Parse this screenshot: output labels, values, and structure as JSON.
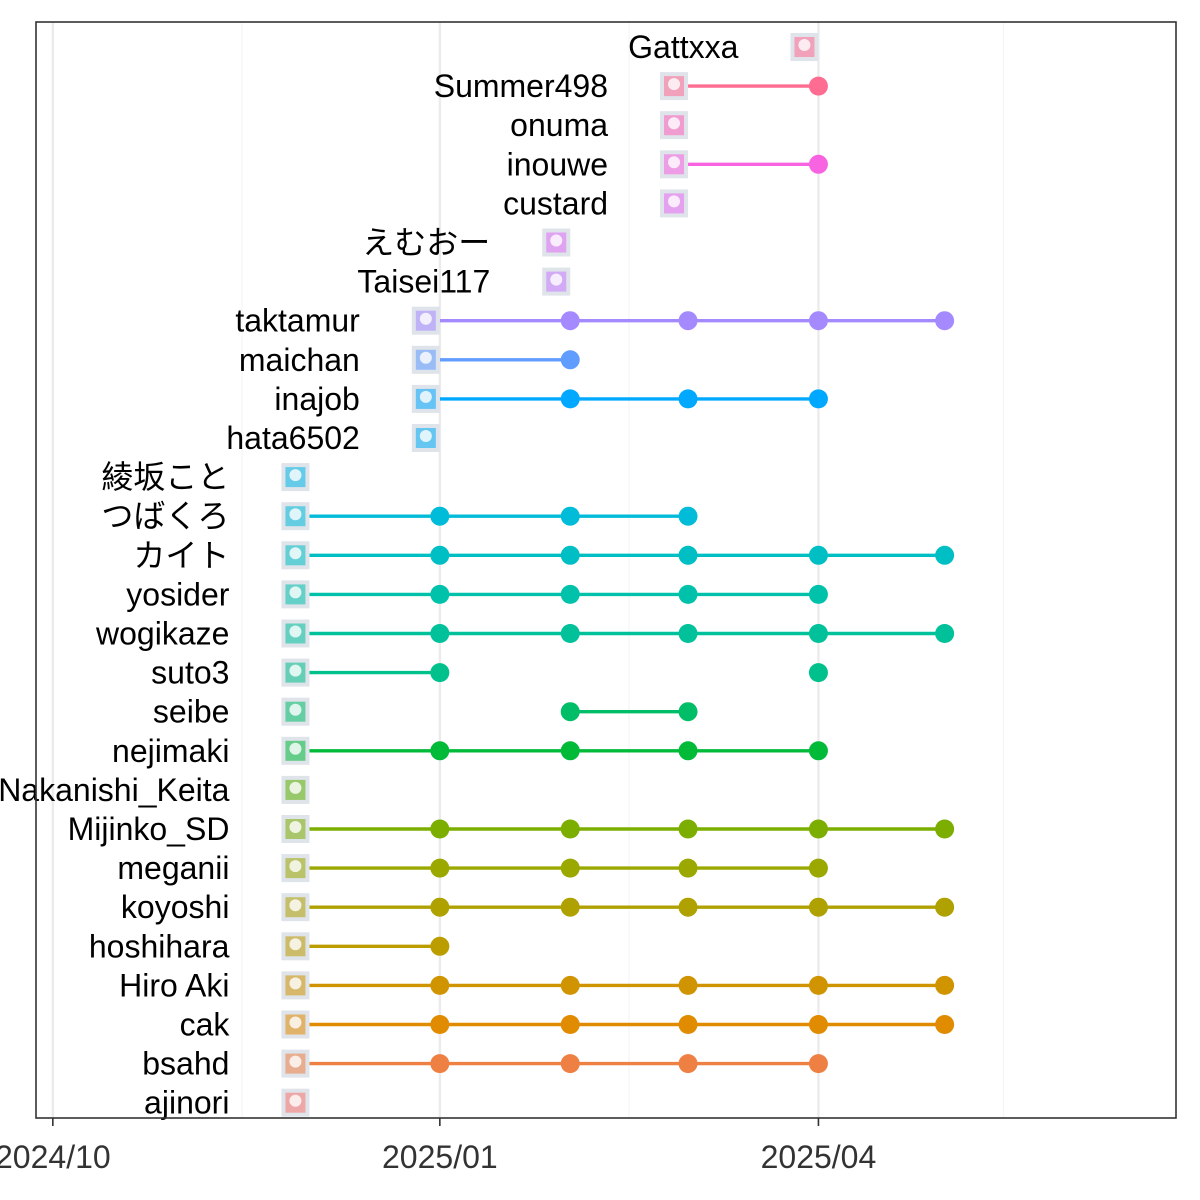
{
  "chart_data": {
    "type": "scatter",
    "title": "",
    "xlabel": "",
    "ylabel": "",
    "x_axis": {
      "type": "date",
      "range": [
        "2024-09-27",
        "2025-06-25"
      ],
      "ticks": [
        {
          "date": "2024-10-01",
          "label": "2024/10"
        },
        {
          "date": "2025-01-01",
          "label": "2025/01"
        },
        {
          "date": "2025-04-01",
          "label": "2025/04"
        }
      ],
      "minor_gridlines": [
        "2024-11-15",
        "2025-02-15",
        "2025-05-15"
      ]
    },
    "grid": true,
    "legend": "none",
    "series": [
      {
        "name": "ajinori",
        "color": "#F8766D",
        "icon": "avatar-cat-dark",
        "start": "2024-12-01",
        "dates": []
      },
      {
        "name": "bsahd",
        "color": "#EE8044",
        "icon": "avatar-white-symbol",
        "start": "2024-12-01",
        "dates": [
          "2025-01-01",
          "2025-02-01",
          "2025-03-01",
          "2025-04-01"
        ]
      },
      {
        "name": "cak",
        "color": "#E08B00",
        "icon": "avatar-blue-envelope",
        "start": "2024-12-01",
        "dates": [
          "2025-01-01",
          "2025-02-01",
          "2025-03-01",
          "2025-04-01",
          "2025-05-01"
        ]
      },
      {
        "name": "Hiro Aki",
        "color": "#CF9400",
        "icon": "avatar-green-box",
        "start": "2024-12-01",
        "dates": [
          "2025-01-01",
          "2025-02-01",
          "2025-03-01",
          "2025-04-01",
          "2025-05-01"
        ]
      },
      {
        "name": "hoshihara",
        "color": "#BC9D00",
        "icon": "avatar-grey-sketch",
        "start": "2024-12-01",
        "dates": [
          "2025-01-01"
        ]
      },
      {
        "name": "koyoshi",
        "color": "#AFA100",
        "icon": "avatar-red-stamp",
        "start": "2024-12-01",
        "dates": [
          "2025-01-01",
          "2025-02-01",
          "2025-03-01",
          "2025-04-01",
          "2025-05-01"
        ]
      },
      {
        "name": "meganii",
        "color": "#9AA800",
        "icon": "avatar-glasses-face",
        "start": "2024-12-01",
        "dates": [
          "2025-01-01",
          "2025-02-01",
          "2025-03-01",
          "2025-04-01"
        ]
      },
      {
        "name": "Mijinko_SD",
        "color": "#7CAE00",
        "icon": "avatar-lavender-character",
        "start": "2024-12-01",
        "dates": [
          "2025-01-01",
          "2025-02-01",
          "2025-03-01",
          "2025-04-01",
          "2025-05-01"
        ]
      },
      {
        "name": "Nakanishi_Keita",
        "color": "#5BB300",
        "icon": "avatar-grey-figure",
        "start": "2024-12-01",
        "dates": []
      },
      {
        "name": "nejimaki",
        "color": "#00BA38",
        "icon": "avatar-windup-key",
        "start": "2024-12-01",
        "dates": [
          "2025-01-01",
          "2025-02-01",
          "2025-03-01",
          "2025-04-01"
        ]
      },
      {
        "name": "seibe",
        "color": "#00BE67",
        "icon": "avatar-teal-character",
        "start": "2024-12-01",
        "dates": [
          "2025-02-01",
          "2025-03-01"
        ]
      },
      {
        "name": "suto3",
        "color": "#00C08B",
        "icon": "avatar-black-circle",
        "start": "2024-12-01",
        "dates": [
          "2025-01-01",
          "2025-04-01"
        ]
      },
      {
        "name": "wogikaze",
        "color": "#00C19A",
        "icon": "avatar-orange-drawing",
        "start": "2024-12-01",
        "dates": [
          "2025-01-01",
          "2025-02-01",
          "2025-03-01",
          "2025-04-01",
          "2025-05-01"
        ]
      },
      {
        "name": "yosider",
        "color": "#00C1AA",
        "icon": "avatar-blue-hair-character",
        "start": "2024-12-01",
        "dates": [
          "2025-01-01",
          "2025-02-01",
          "2025-03-01",
          "2025-04-01"
        ]
      },
      {
        "name": "カイト",
        "color": "#00BFC4",
        "icon": "avatar-dark-photo",
        "start": "2024-12-01",
        "dates": [
          "2025-01-01",
          "2025-02-01",
          "2025-03-01",
          "2025-04-01",
          "2025-05-01"
        ]
      },
      {
        "name": "つばくろ",
        "color": "#00BCD8",
        "icon": "avatar-bird-photo",
        "start": "2024-12-01",
        "dates": [
          "2025-01-01",
          "2025-02-01",
          "2025-03-01"
        ]
      },
      {
        "name": "綾坂こと",
        "color": "#00B8E7",
        "icon": "avatar-light-card",
        "start": "2024-12-01",
        "dates": []
      },
      {
        "name": "hata6502",
        "color": "#00B0F6",
        "icon": "avatar-white-figure",
        "start": "2025-01-01",
        "dates": []
      },
      {
        "name": "inajob",
        "color": "#00A9FF",
        "icon": "avatar-red-robot",
        "start": "2025-01-01",
        "dates": [
          "2025-02-01",
          "2025-03-01",
          "2025-04-01"
        ]
      },
      {
        "name": "maichan",
        "color": "#619CFF",
        "icon": "avatar-pink-blocks",
        "start": "2025-01-01",
        "dates": [
          "2025-02-01"
        ]
      },
      {
        "name": "taktamur",
        "color": "#A58AFF",
        "icon": "avatar-yellow-chick",
        "start": "2025-01-01",
        "dates": [
          "2025-02-01",
          "2025-03-01",
          "2025-04-01",
          "2025-05-01"
        ]
      },
      {
        "name": "Taisei117",
        "color": "#C77CFF",
        "icon": "avatar-suit-person",
        "start": "2025-02-01",
        "dates": []
      },
      {
        "name": "えむおー",
        "color": "#DF70F8",
        "icon": "avatar-cartoon-face",
        "start": "2025-02-01",
        "dates": []
      },
      {
        "name": "custard",
        "color": "#E76BF3",
        "icon": "avatar-grey-photo",
        "start": "2025-03-01",
        "dates": []
      },
      {
        "name": "inouwe",
        "color": "#F763E0",
        "icon": "avatar-anime-girl",
        "start": "2025-03-01",
        "dates": [
          "2025-04-01"
        ]
      },
      {
        "name": "onuma",
        "color": "#FF62BC",
        "icon": "avatar-red-food",
        "start": "2025-03-01",
        "dates": []
      },
      {
        "name": "Summer498",
        "color": "#FF6C91",
        "icon": "avatar-dark-hair-girl",
        "start": "2025-03-01",
        "dates": [
          "2025-04-01"
        ]
      },
      {
        "name": "Gattxxa",
        "color": "#FF6C91",
        "icon": "avatar-purple-hair-girl",
        "start": "2025-04-01",
        "dates": []
      }
    ]
  },
  "colors": {
    "panel_border": "#333333",
    "grid_major": "#EBEBEB",
    "grid_minor": "#F5F5F5",
    "tick_text": "#333333",
    "label_text": "#000000"
  }
}
